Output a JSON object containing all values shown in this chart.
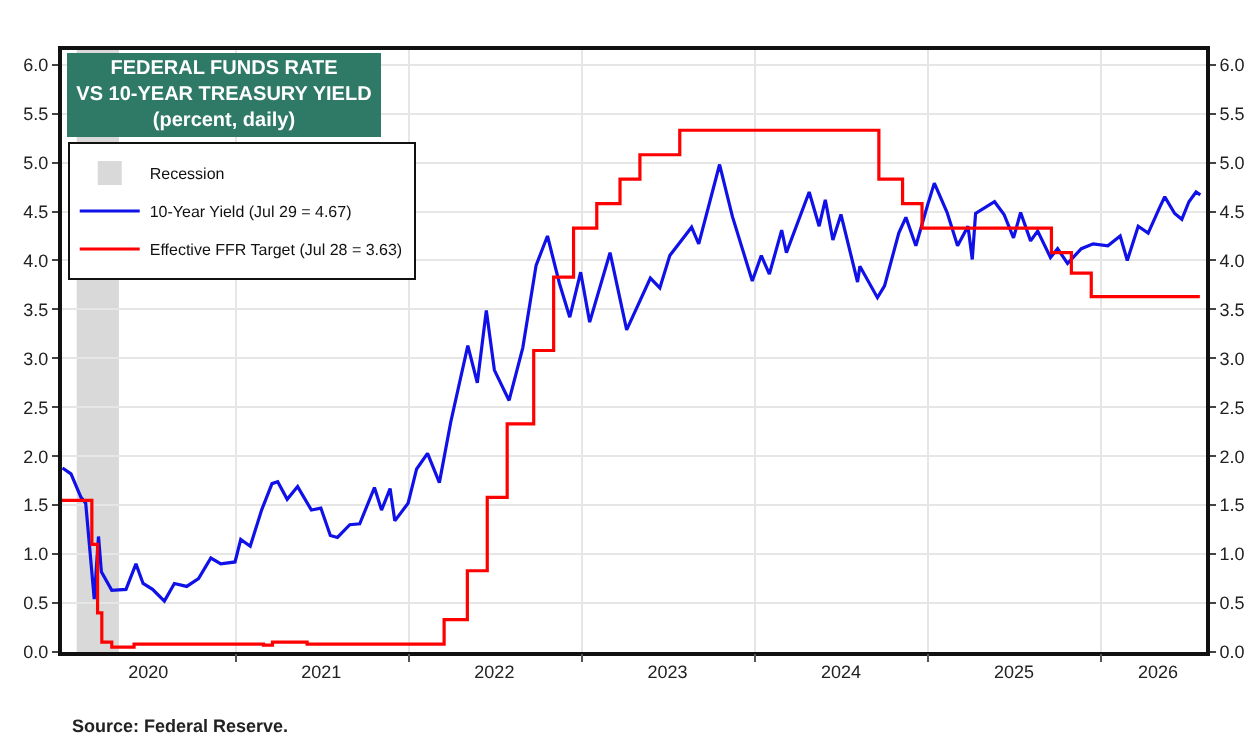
{
  "chart_data": {
    "type": "line",
    "title": "FEDERAL FUNDS RATE\nVS 10-YEAR TREASURY YIELD",
    "subtitle": "(percent, daily)",
    "annotations": [
      "Source: Federal Reserve."
    ],
    "xlim": [
      "2020-01-01",
      "2026-08-10"
    ],
    "xticks": [
      {
        "value": "2020-07-01",
        "label": "2020"
      },
      {
        "value": "2021-01-01",
        "label": null
      },
      {
        "value": "2021-07-01",
        "label": "2021"
      },
      {
        "value": "2022-01-01",
        "label": null
      },
      {
        "value": "2022-07-01",
        "label": "2022"
      },
      {
        "value": "2023-01-01",
        "label": null
      },
      {
        "value": "2023-07-01",
        "label": "2023"
      },
      {
        "value": "2024-01-01",
        "label": null
      },
      {
        "value": "2024-07-01",
        "label": "2024"
      },
      {
        "value": "2025-01-01",
        "label": null
      },
      {
        "value": "2025-07-01",
        "label": "2025"
      },
      {
        "value": "2026-01-01",
        "label": null
      },
      {
        "value": "2026-05-01",
        "label": "2026"
      }
    ],
    "ylim": [
      0,
      6.15
    ],
    "yticks": [
      {
        "value": 0,
        "label": "0.0"
      },
      0.5,
      {
        "value": 1,
        "label": "1.0"
      },
      1.5,
      {
        "value": 2,
        "label": "2.0"
      },
      2.5,
      {
        "value": 3,
        "label": "3.0"
      },
      3.5,
      {
        "value": 4,
        "label": "4.0"
      },
      4.5,
      {
        "value": 5,
        "label": "5.0"
      },
      5.5,
      {
        "value": 6,
        "label": "6.0"
      }
    ],
    "y2lim": [
      0,
      6.15
    ],
    "y2ticks": [
      {
        "value": 0,
        "label": "0.0"
      },
      0.5,
      {
        "value": 1,
        "label": "1.0"
      },
      1.5,
      {
        "value": 2,
        "label": "2.0"
      },
      2.5,
      {
        "value": 3,
        "label": "3.0"
      },
      3.5,
      {
        "value": 4,
        "label": "4.0"
      },
      4.5,
      {
        "value": 5,
        "label": "5.0"
      },
      5.5,
      {
        "value": 6,
        "label": "6.0"
      }
    ],
    "bands": [
      {
        "axis": "x",
        "from": "2020-02-01",
        "to": "2020-04-30",
        "label": "Recession",
        "color": "#d9d9d9"
      }
    ],
    "grid": true,
    "legend": "top left",
    "series": [
      {
        "name": "10-Year Yield (Jul 29 = 4.67)",
        "type": "line",
        "color": "#1010e8",
        "x": [
          "2020-01-02",
          "2020-01-20",
          "2020-02-10",
          "2020-02-20",
          "2020-03-09",
          "2020-03-18",
          "2020-03-24",
          "2020-04-15",
          "2020-05-15",
          "2020-06-05",
          "2020-06-20",
          "2020-07-10",
          "2020-08-04",
          "2020-08-25",
          "2020-09-20",
          "2020-10-15",
          "2020-11-10",
          "2020-12-01",
          "2020-12-31",
          "2021-01-12",
          "2021-02-01",
          "2021-02-25",
          "2021-03-19",
          "2021-03-31",
          "2021-04-20",
          "2021-05-12",
          "2021-06-10",
          "2021-06-30",
          "2021-07-20",
          "2021-08-04",
          "2021-08-30",
          "2021-09-20",
          "2021-10-21",
          "2021-11-05",
          "2021-11-23",
          "2021-12-03",
          "2021-12-31",
          "2022-01-18",
          "2022-02-10",
          "2022-03-07",
          "2022-03-31",
          "2022-05-06",
          "2022-05-26",
          "2022-06-14",
          "2022-07-01",
          "2022-08-01",
          "2022-08-30",
          "2022-09-27",
          "2022-10-21",
          "2022-11-15",
          "2022-12-07",
          "2022-12-30",
          "2023-01-18",
          "2023-03-02",
          "2023-04-06",
          "2023-05-26",
          "2023-06-15",
          "2023-07-06",
          "2023-08-21",
          "2023-09-05",
          "2023-10-19",
          "2023-11-15",
          "2023-12-27",
          "2024-01-15",
          "2024-02-01",
          "2024-02-27",
          "2024-03-08",
          "2024-04-25",
          "2024-05-16",
          "2024-05-29",
          "2024-06-14",
          "2024-07-01",
          "2024-08-05",
          "2024-08-10",
          "2024-09-16",
          "2024-10-01",
          "2024-10-31",
          "2024-11-15",
          "2024-12-06",
          "2024-12-31",
          "2025-01-14",
          "2025-02-10",
          "2025-03-04",
          "2025-03-26",
          "2025-04-04",
          "2025-04-11",
          "2025-05-21",
          "2025-06-10",
          "2025-06-30",
          "2025-07-15",
          "2025-08-05",
          "2025-08-20",
          "2025-09-16",
          "2025-10-01",
          "2025-10-22",
          "2025-11-20",
          "2025-12-15",
          "2026-01-15",
          "2026-02-10",
          "2026-02-25",
          "2026-03-20",
          "2026-04-10",
          "2026-05-05",
          "2026-05-15",
          "2026-06-05",
          "2026-06-20",
          "2026-07-05",
          "2026-07-20",
          "2026-07-29"
        ],
        "values": [
          1.88,
          1.82,
          1.58,
          1.52,
          0.54,
          1.18,
          0.82,
          0.63,
          0.64,
          0.9,
          0.7,
          0.64,
          0.52,
          0.7,
          0.67,
          0.75,
          0.96,
          0.9,
          0.92,
          1.15,
          1.08,
          1.45,
          1.72,
          1.74,
          1.56,
          1.69,
          1.45,
          1.47,
          1.19,
          1.17,
          1.3,
          1.31,
          1.68,
          1.45,
          1.67,
          1.34,
          1.52,
          1.87,
          2.03,
          1.73,
          2.35,
          3.13,
          2.75,
          3.49,
          2.88,
          2.57,
          3.11,
          3.95,
          4.25,
          3.77,
          3.42,
          3.88,
          3.37,
          4.08,
          3.29,
          3.82,
          3.72,
          4.05,
          4.34,
          4.17,
          4.98,
          4.45,
          3.79,
          4.05,
          3.86,
          4.31,
          4.08,
          4.7,
          4.35,
          4.62,
          4.21,
          4.47,
          3.78,
          3.94,
          3.62,
          3.74,
          4.28,
          4.44,
          4.15,
          4.57,
          4.79,
          4.49,
          4.15,
          4.35,
          4.01,
          4.48,
          4.6,
          4.47,
          4.23,
          4.49,
          4.2,
          4.3,
          4.03,
          4.12,
          3.97,
          4.12,
          4.17,
          4.15,
          4.25,
          4.0,
          4.35,
          4.28,
          4.55,
          4.65,
          4.48,
          4.42,
          4.6,
          4.7,
          4.67
        ]
      },
      {
        "name": "Effective FFR Target (Jul 28 = 3.63)",
        "type": "step",
        "color": "#ff0000",
        "x": [
          "2020-01-01",
          "2020-03-04",
          "2020-03-16",
          "2020-03-25",
          "2020-04-15",
          "2020-06-01",
          "2021-03-01",
          "2021-03-20",
          "2021-06-01",
          "2022-03-17",
          "2022-05-05",
          "2022-06-16",
          "2022-07-28",
          "2022-09-22",
          "2022-11-03",
          "2022-12-15",
          "2023-02-02",
          "2023-03-23",
          "2023-05-04",
          "2023-07-27",
          "2024-09-19",
          "2024-11-08",
          "2024-12-19",
          "2025-09-18",
          "2025-10-30",
          "2025-12-11",
          "2026-07-28"
        ],
        "values": [
          1.55,
          1.1,
          0.4,
          0.1,
          0.05,
          0.08,
          0.07,
          0.1,
          0.08,
          0.33,
          0.83,
          1.58,
          2.33,
          3.08,
          3.83,
          4.33,
          4.58,
          4.83,
          5.08,
          5.33,
          4.83,
          4.58,
          4.33,
          4.08,
          3.87,
          3.63,
          3.63
        ]
      }
    ]
  }
}
